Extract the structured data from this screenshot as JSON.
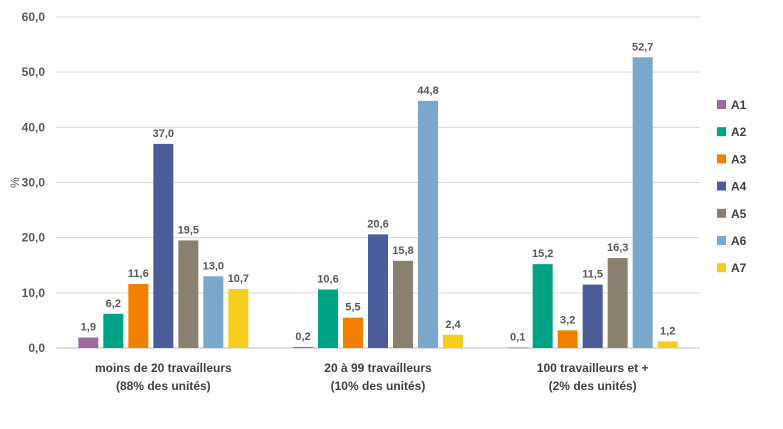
{
  "chart_data": {
    "type": "bar",
    "ylabel": "%",
    "ylim": [
      0,
      60
    ],
    "yticks": [
      "0,0",
      "10,0",
      "20,0",
      "30,0",
      "40,0",
      "50,0",
      "60,0"
    ],
    "grid": true,
    "legend_position": "right",
    "categories": [
      [
        "moins de 20 travailleurs",
        "(88% des unités)"
      ],
      [
        "20 à 99 travailleurs",
        "(10% des unités)"
      ],
      [
        "100 travailleurs et +",
        "(2% des unités)"
      ]
    ],
    "series": [
      {
        "name": "A1",
        "color": "#9e6b9e",
        "values": [
          1.9,
          0.2,
          0.1
        ],
        "labels": [
          "1,9",
          "0,2",
          "0,1"
        ]
      },
      {
        "name": "A2",
        "color": "#00a383",
        "values": [
          6.2,
          10.6,
          15.2
        ],
        "labels": [
          "6,2",
          "10,6",
          "15,2"
        ]
      },
      {
        "name": "A3",
        "color": "#f08000",
        "values": [
          11.6,
          5.5,
          3.2
        ],
        "labels": [
          "11,6",
          "5,5",
          "3,2"
        ]
      },
      {
        "name": "A4",
        "color": "#4c5c99",
        "values": [
          37.0,
          20.6,
          11.5
        ],
        "labels": [
          "37,0",
          "20,6",
          "11,5"
        ]
      },
      {
        "name": "A5",
        "color": "#8a8070",
        "values": [
          19.5,
          15.8,
          16.3
        ],
        "labels": [
          "19,5",
          "15,8",
          "16,3"
        ]
      },
      {
        "name": "A6",
        "color": "#7aa7cc",
        "values": [
          13.0,
          44.8,
          52.7
        ],
        "labels": [
          "13,0",
          "44,8",
          "52,7"
        ]
      },
      {
        "name": "A7",
        "color": "#f5cd1c",
        "values": [
          10.7,
          2.4,
          1.2
        ],
        "labels": [
          "10,7",
          "2,4",
          "1,2"
        ]
      }
    ]
  }
}
